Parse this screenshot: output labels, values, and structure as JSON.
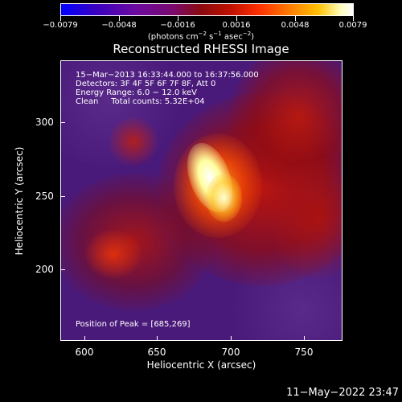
{
  "colorbar": {
    "tick_labels": [
      "−0.0079",
      "−0.0048",
      "−0.0016",
      "0.0016",
      "0.0048",
      "0.0079"
    ],
    "units_text": "(photons cm",
    "units_exp1": "−2",
    "units_mid": " s",
    "units_exp2": "−1",
    "units_end": " asec",
    "units_exp3": "−2",
    "units_close": ")"
  },
  "plot": {
    "title": "Reconstructed RHESSI Image",
    "info_line1": "15−Mar−2013 16:33:44.000 to 16:37:56.000",
    "info_line2": "Detectors: 3F 4F 5F 6F 7F 8F, Att 0",
    "info_line3": "Energy Range: 6.0 − 12.0 keV",
    "info_line4": "Clean     Total counts: 5.32E+04",
    "peak_text": "Position of Peak = [685,269]",
    "xlabel": "Heliocentric X (arcsec)",
    "ylabel": "Heliocentric Y (arcsec)",
    "x_ticks": [
      "600",
      "650",
      "700",
      "750"
    ],
    "y_ticks": [
      "300",
      "250",
      "200"
    ]
  },
  "colors": {
    "background": "#000000",
    "low": "#4a1a7a",
    "mid": "#c01000",
    "high": "#ffffff"
  },
  "timestamp": "11−May−2022 23:47"
}
